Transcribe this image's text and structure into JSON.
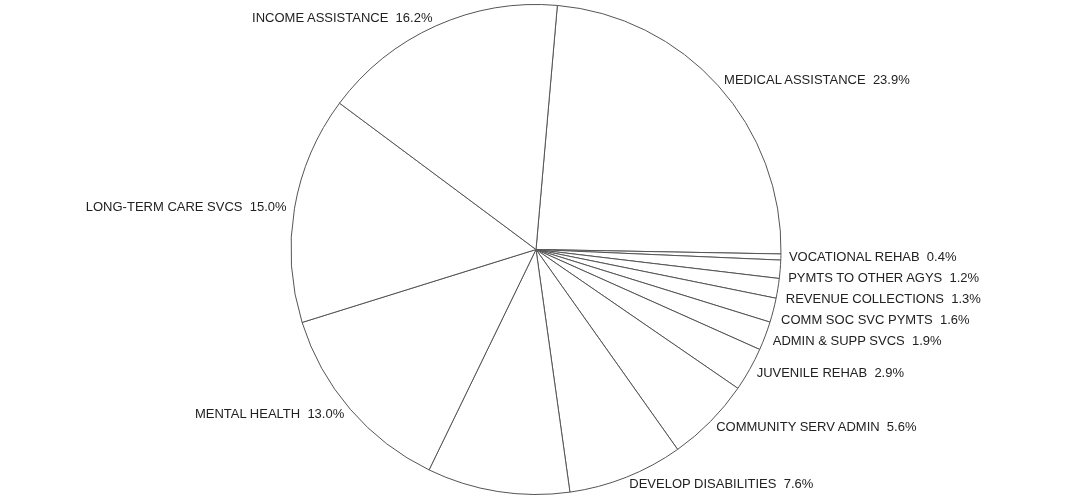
{
  "chart_data": {
    "type": "pie",
    "categories": [
      "MEDICAL ASSISTANCE",
      "VOCATIONAL REHAB",
      "PYMTS TO OTHER AGYS",
      "REVENUE COLLECTIONS",
      "COMM SOC SVC PYMTS",
      "ADMIN & SUPP SVCS",
      "JUVENILE REHAB",
      "COMMUNITY SERV ADMIN",
      "DEVELOP DISABILITIES",
      null,
      "MENTAL HEALTH",
      "LONG-TERM CARE SVCS",
      "INCOME ASSISTANCE"
    ],
    "values": [
      23.9,
      0.4,
      1.2,
      1.3,
      1.6,
      1.9,
      2.9,
      5.6,
      7.6,
      9.4,
      13.0,
      15.0,
      16.2
    ],
    "value_labels": [
      "23.9%",
      "0.4%",
      "1.2%",
      "1.3%",
      "1.6%",
      "1.9%",
      "2.9%",
      "5.6%",
      "7.6%",
      null,
      "13.0%",
      "15.0%",
      "16.2%"
    ],
    "colors": [
      "#ffffff",
      "#ffffff",
      "#ffffff",
      "#ffffff",
      "#ffffff",
      "#ffffff",
      "#ffffff",
      "#ffffff",
      "#ffffff",
      "#ffffff",
      "#ffffff",
      "#ffffff",
      "#ffffff"
    ],
    "legend": false
  }
}
